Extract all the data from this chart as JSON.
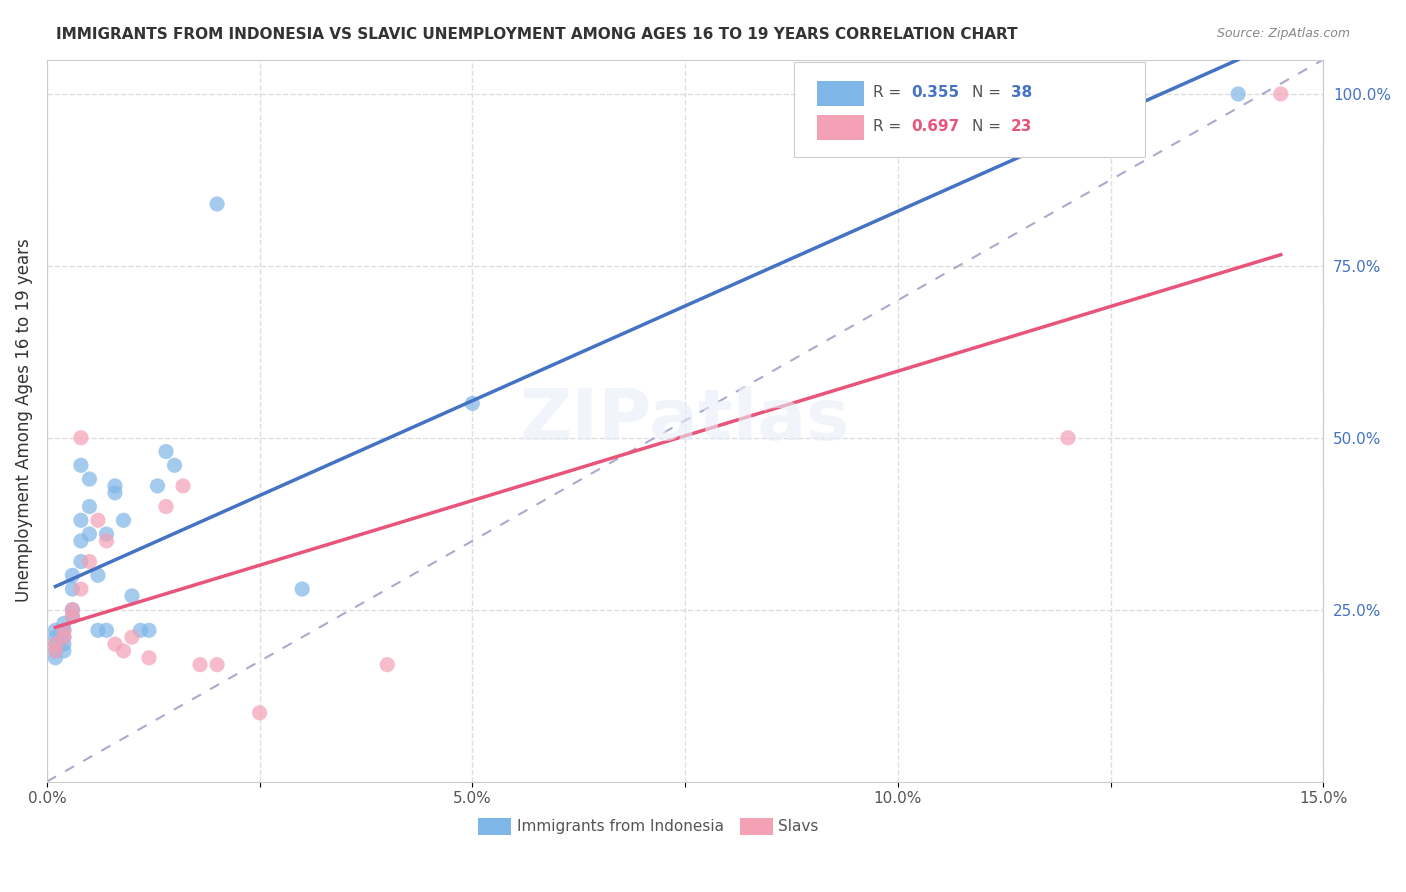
{
  "title": "IMMIGRANTS FROM INDONESIA VS SLAVIC UNEMPLOYMENT AMONG AGES 16 TO 19 YEARS CORRELATION CHART",
  "source": "Source: ZipAtlas.com",
  "ylabel_left": "Unemployment Among Ages 16 to 19 years",
  "xlim": [
    0.0,
    0.15
  ],
  "ylim": [
    0.0,
    1.05
  ],
  "xticks": [
    0.0,
    0.025,
    0.05,
    0.075,
    0.1,
    0.125,
    0.15
  ],
  "xticklabels": [
    "0.0%",
    "",
    "5.0%",
    "",
    "10.0%",
    "",
    "15.0%"
  ],
  "yticks_right": [
    0.25,
    0.5,
    0.75,
    1.0
  ],
  "ytick_right_labels": [
    "25.0%",
    "50.0%",
    "75.0%",
    "100.0%"
  ],
  "r_indonesia": 0.355,
  "n_indonesia": 38,
  "r_slavs": 0.697,
  "n_slavs": 23,
  "color_indonesia": "#7EB6E8",
  "color_slavs": "#F4A0B5",
  "color_indonesia_dark": "#4472C4",
  "color_slavs_dark": "#E8547A",
  "watermark": "ZIPatlas",
  "indonesia_x": [
    0.001,
    0.001,
    0.001,
    0.001,
    0.001,
    0.002,
    0.002,
    0.002,
    0.002,
    0.002,
    0.003,
    0.003,
    0.003,
    0.003,
    0.004,
    0.004,
    0.004,
    0.004,
    0.005,
    0.005,
    0.005,
    0.006,
    0.006,
    0.007,
    0.007,
    0.008,
    0.008,
    0.009,
    0.01,
    0.011,
    0.012,
    0.013,
    0.014,
    0.015,
    0.02,
    0.03,
    0.05,
    0.14
  ],
  "indonesia_y": [
    0.2,
    0.21,
    0.22,
    0.19,
    0.18,
    0.22,
    0.23,
    0.21,
    0.2,
    0.19,
    0.24,
    0.25,
    0.3,
    0.28,
    0.32,
    0.35,
    0.38,
    0.46,
    0.36,
    0.4,
    0.44,
    0.3,
    0.22,
    0.36,
    0.22,
    0.42,
    0.43,
    0.38,
    0.27,
    0.22,
    0.22,
    0.43,
    0.48,
    0.46,
    0.84,
    0.28,
    0.55,
    1.0
  ],
  "slavs_x": [
    0.001,
    0.001,
    0.002,
    0.002,
    0.003,
    0.003,
    0.004,
    0.004,
    0.005,
    0.006,
    0.007,
    0.008,
    0.009,
    0.01,
    0.012,
    0.014,
    0.016,
    0.018,
    0.02,
    0.025,
    0.04,
    0.12,
    0.145
  ],
  "slavs_y": [
    0.2,
    0.19,
    0.22,
    0.21,
    0.24,
    0.25,
    0.5,
    0.28,
    0.32,
    0.38,
    0.35,
    0.2,
    0.19,
    0.21,
    0.18,
    0.4,
    0.43,
    0.17,
    0.17,
    0.1,
    0.17,
    0.5,
    1.0
  ],
  "grid_color": "#DDDDDD",
  "bg_color": "#FFFFFF"
}
